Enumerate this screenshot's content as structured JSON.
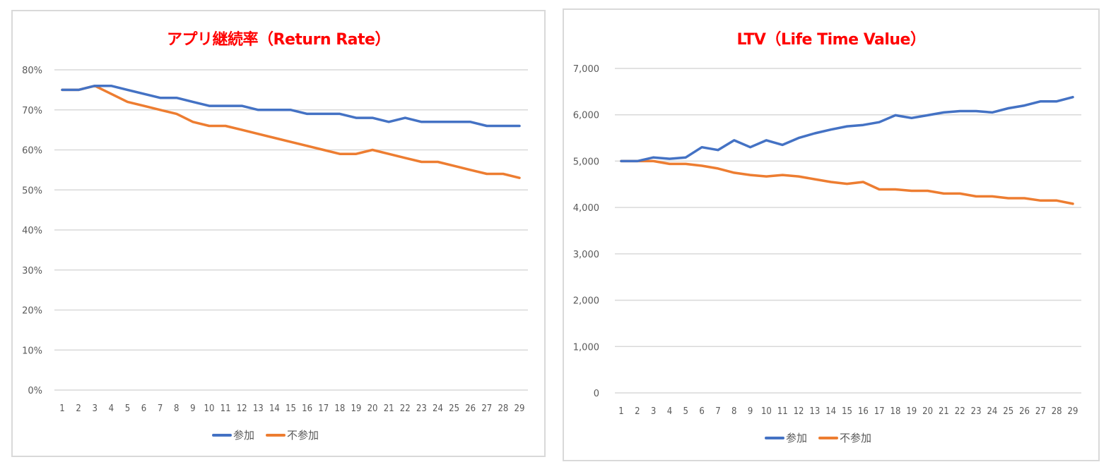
{
  "colors": {
    "series_join": "#4472C4",
    "series_nonjoin": "#ED7D31",
    "title": "#FF0000",
    "grid": "#D9D9D9",
    "axis_text": "#595959"
  },
  "chart_data": [
    {
      "type": "line",
      "title": "アプリ継続率（Return Rate）",
      "xlabel": "",
      "ylabel": "",
      "categories": [
        "1",
        "2",
        "3",
        "4",
        "5",
        "6",
        "7",
        "8",
        "9",
        "10",
        "11",
        "12",
        "13",
        "14",
        "15",
        "16",
        "17",
        "18",
        "19",
        "20",
        "21",
        "22",
        "23",
        "24",
        "25",
        "26",
        "27",
        "28",
        "29"
      ],
      "ylim": [
        0,
        0.8
      ],
      "yticks": [
        "0%",
        "10%",
        "20%",
        "30%",
        "40%",
        "50%",
        "60%",
        "70%",
        "80%"
      ],
      "grid": true,
      "legend_position": "bottom",
      "series": [
        {
          "name": "参加",
          "color": "#4472C4",
          "values": [
            0.75,
            0.75,
            0.76,
            0.76,
            0.75,
            0.74,
            0.73,
            0.73,
            0.72,
            0.71,
            0.71,
            0.71,
            0.7,
            0.7,
            0.7,
            0.69,
            0.69,
            0.69,
            0.68,
            0.68,
            0.67,
            0.68,
            0.67,
            0.67,
            0.67,
            0.67,
            0.66,
            0.66,
            0.66
          ]
        },
        {
          "name": "不参加",
          "color": "#ED7D31",
          "values": [
            0.75,
            0.75,
            0.76,
            0.74,
            0.72,
            0.71,
            0.7,
            0.69,
            0.67,
            0.66,
            0.66,
            0.65,
            0.64,
            0.63,
            0.62,
            0.61,
            0.6,
            0.59,
            0.59,
            0.6,
            0.59,
            0.58,
            0.57,
            0.57,
            0.56,
            0.55,
            0.54,
            0.54,
            0.53
          ]
        }
      ]
    },
    {
      "type": "line",
      "title": "LTV（Life Time Value）",
      "xlabel": "",
      "ylabel": "",
      "categories": [
        "1",
        "2",
        "3",
        "4",
        "5",
        "6",
        "7",
        "8",
        "9",
        "10",
        "11",
        "12",
        "13",
        "14",
        "15",
        "16",
        "17",
        "18",
        "19",
        "20",
        "21",
        "22",
        "23",
        "24",
        "25",
        "26",
        "27",
        "28",
        "29"
      ],
      "ylim": [
        0,
        7000
      ],
      "yticks": [
        "0",
        "1,000",
        "2,000",
        "3,000",
        "4,000",
        "5,000",
        "6,000",
        "7,000"
      ],
      "grid": true,
      "legend_position": "bottom",
      "series": [
        {
          "name": "参加",
          "color": "#4472C4",
          "values": [
            5000,
            5000,
            5080,
            5050,
            5080,
            5300,
            5240,
            5450,
            5300,
            5450,
            5350,
            5500,
            5600,
            5680,
            5750,
            5780,
            5840,
            5990,
            5930,
            5990,
            6050,
            6080,
            6080,
            6050,
            6140,
            6200,
            6290,
            6290,
            6380
          ]
        },
        {
          "name": "不参加",
          "color": "#ED7D31",
          "values": [
            5000,
            5000,
            5000,
            4940,
            4940,
            4900,
            4840,
            4750,
            4700,
            4670,
            4700,
            4670,
            4610,
            4550,
            4510,
            4550,
            4390,
            4390,
            4360,
            4360,
            4300,
            4300,
            4240,
            4240,
            4200,
            4200,
            4150,
            4150,
            4080
          ]
        }
      ]
    }
  ]
}
